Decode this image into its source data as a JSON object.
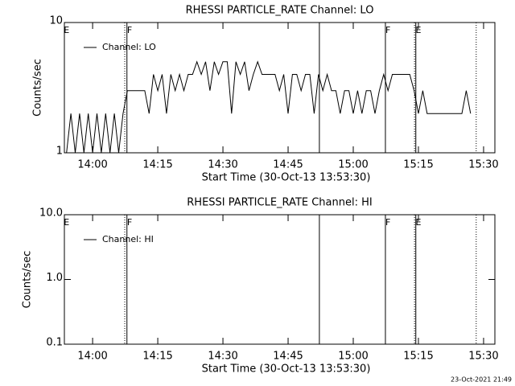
{
  "chart_data": [
    {
      "type": "line",
      "title": "RHESSI PARTICLE_RATE Channel: LO",
      "xlabel": "Start Time (30-Oct-13 13:53:30)",
      "ylabel": "Counts/sec",
      "x": [
        834,
        835,
        836,
        837,
        838,
        839,
        840,
        841,
        842,
        843,
        844,
        845,
        846,
        847,
        848,
        849,
        850,
        851,
        852,
        853,
        854,
        855,
        856,
        857,
        858,
        859,
        860,
        861,
        862,
        863,
        864,
        865,
        866,
        867,
        868,
        869,
        870,
        871,
        872,
        873,
        874,
        875,
        876,
        877,
        878,
        879,
        880,
        881,
        882,
        883,
        884,
        885,
        886,
        887,
        888,
        889,
        890,
        891,
        892,
        893,
        894,
        895,
        896,
        897,
        898,
        899,
        900,
        901,
        902,
        903,
        904,
        905,
        906,
        907,
        908,
        909,
        910,
        911,
        912,
        913,
        914,
        915,
        916,
        917,
        918,
        919,
        920,
        921,
        922,
        923,
        924,
        925,
        926,
        927
      ],
      "series": [
        {
          "name": "Channel: LO",
          "color": "#000000",
          "values": [
            1,
            2,
            1,
            2,
            1,
            2,
            1,
            2,
            1,
            2,
            1,
            2,
            1,
            2,
            3,
            3,
            3,
            3,
            3,
            2,
            4,
            3,
            4,
            2,
            4,
            3,
            4,
            3,
            4,
            4,
            5,
            4,
            5,
            3,
            5,
            4,
            5,
            5,
            2,
            5,
            4,
            5,
            3,
            4,
            5,
            4,
            4,
            4,
            4,
            3,
            4,
            2,
            4,
            4,
            3,
            4,
            4,
            2,
            4,
            3,
            4,
            3,
            3,
            2,
            3,
            3,
            2,
            3,
            2,
            3,
            3,
            2,
            3,
            4,
            3,
            4,
            4,
            4,
            4,
            4,
            3,
            2,
            3,
            2,
            2,
            2,
            2,
            2,
            2,
            2,
            2,
            2,
            3,
            2
          ]
        }
      ],
      "xlim": [
        833.5,
        932.6
      ],
      "xticks": [
        {
          "value": 840,
          "label": "14:00"
        },
        {
          "value": 855,
          "label": "14:15"
        },
        {
          "value": 870,
          "label": "14:30"
        },
        {
          "value": 885,
          "label": "14:45"
        },
        {
          "value": 900,
          "label": "15:00"
        },
        {
          "value": 915,
          "label": "15:15"
        },
        {
          "value": 930,
          "label": "15:30"
        }
      ],
      "ylim": [
        1,
        10
      ],
      "yticks": [
        1,
        10
      ],
      "log_y": true,
      "legend": "upper left",
      "vlines": [
        {
          "x": 847.4,
          "style": "dotted"
        },
        {
          "x": 847.9,
          "style": "solid"
        },
        {
          "x": 892.2,
          "style": "solid"
        },
        {
          "x": 907.4,
          "style": "solid"
        },
        {
          "x": 914.1,
          "style": "dotted"
        },
        {
          "x": 914.4,
          "style": "solid"
        },
        {
          "x": 928.3,
          "style": "dotted"
        }
      ],
      "flags": [
        {
          "x": 834,
          "text": "E"
        },
        {
          "x": 848.5,
          "text": "F"
        },
        {
          "x": 908,
          "text": "F"
        },
        {
          "x": 915,
          "text": "E"
        }
      ]
    },
    {
      "type": "line",
      "title": "RHESSI PARTICLE_RATE Channel: HI",
      "xlabel": "Start Time (30-Oct-13 13:53:30)",
      "ylabel": "Counts/sec",
      "x": [],
      "series": [
        {
          "name": "Channel: HI",
          "color": "#000000",
          "values": []
        }
      ],
      "xlim": [
        833.5,
        932.6
      ],
      "xticks": [
        {
          "value": 840,
          "label": "14:00"
        },
        {
          "value": 855,
          "label": "14:15"
        },
        {
          "value": 870,
          "label": "14:30"
        },
        {
          "value": 885,
          "label": "14:45"
        },
        {
          "value": 900,
          "label": "15:00"
        },
        {
          "value": 915,
          "label": "15:15"
        },
        {
          "value": 930,
          "label": "15:30"
        }
      ],
      "ylim": [
        0.1,
        10
      ],
      "yticks": [
        {
          "value": 0.1,
          "label": "0.1"
        },
        {
          "value": 1,
          "label": "1.0"
        },
        {
          "value": 10,
          "label": "10.0"
        }
      ],
      "log_y": true,
      "legend": "upper left",
      "vlines": [
        {
          "x": 847.4,
          "style": "dotted"
        },
        {
          "x": 847.9,
          "style": "solid"
        },
        {
          "x": 892.2,
          "style": "solid"
        },
        {
          "x": 907.4,
          "style": "solid"
        },
        {
          "x": 914.1,
          "style": "dotted"
        },
        {
          "x": 914.4,
          "style": "solid"
        },
        {
          "x": 928.3,
          "style": "dotted"
        }
      ],
      "flags": [
        {
          "x": 834,
          "text": "E"
        },
        {
          "x": 848.5,
          "text": "F"
        },
        {
          "x": 908,
          "text": "F"
        },
        {
          "x": 915,
          "text": "E"
        }
      ]
    }
  ],
  "footer": "23-Oct-2021 21:49"
}
